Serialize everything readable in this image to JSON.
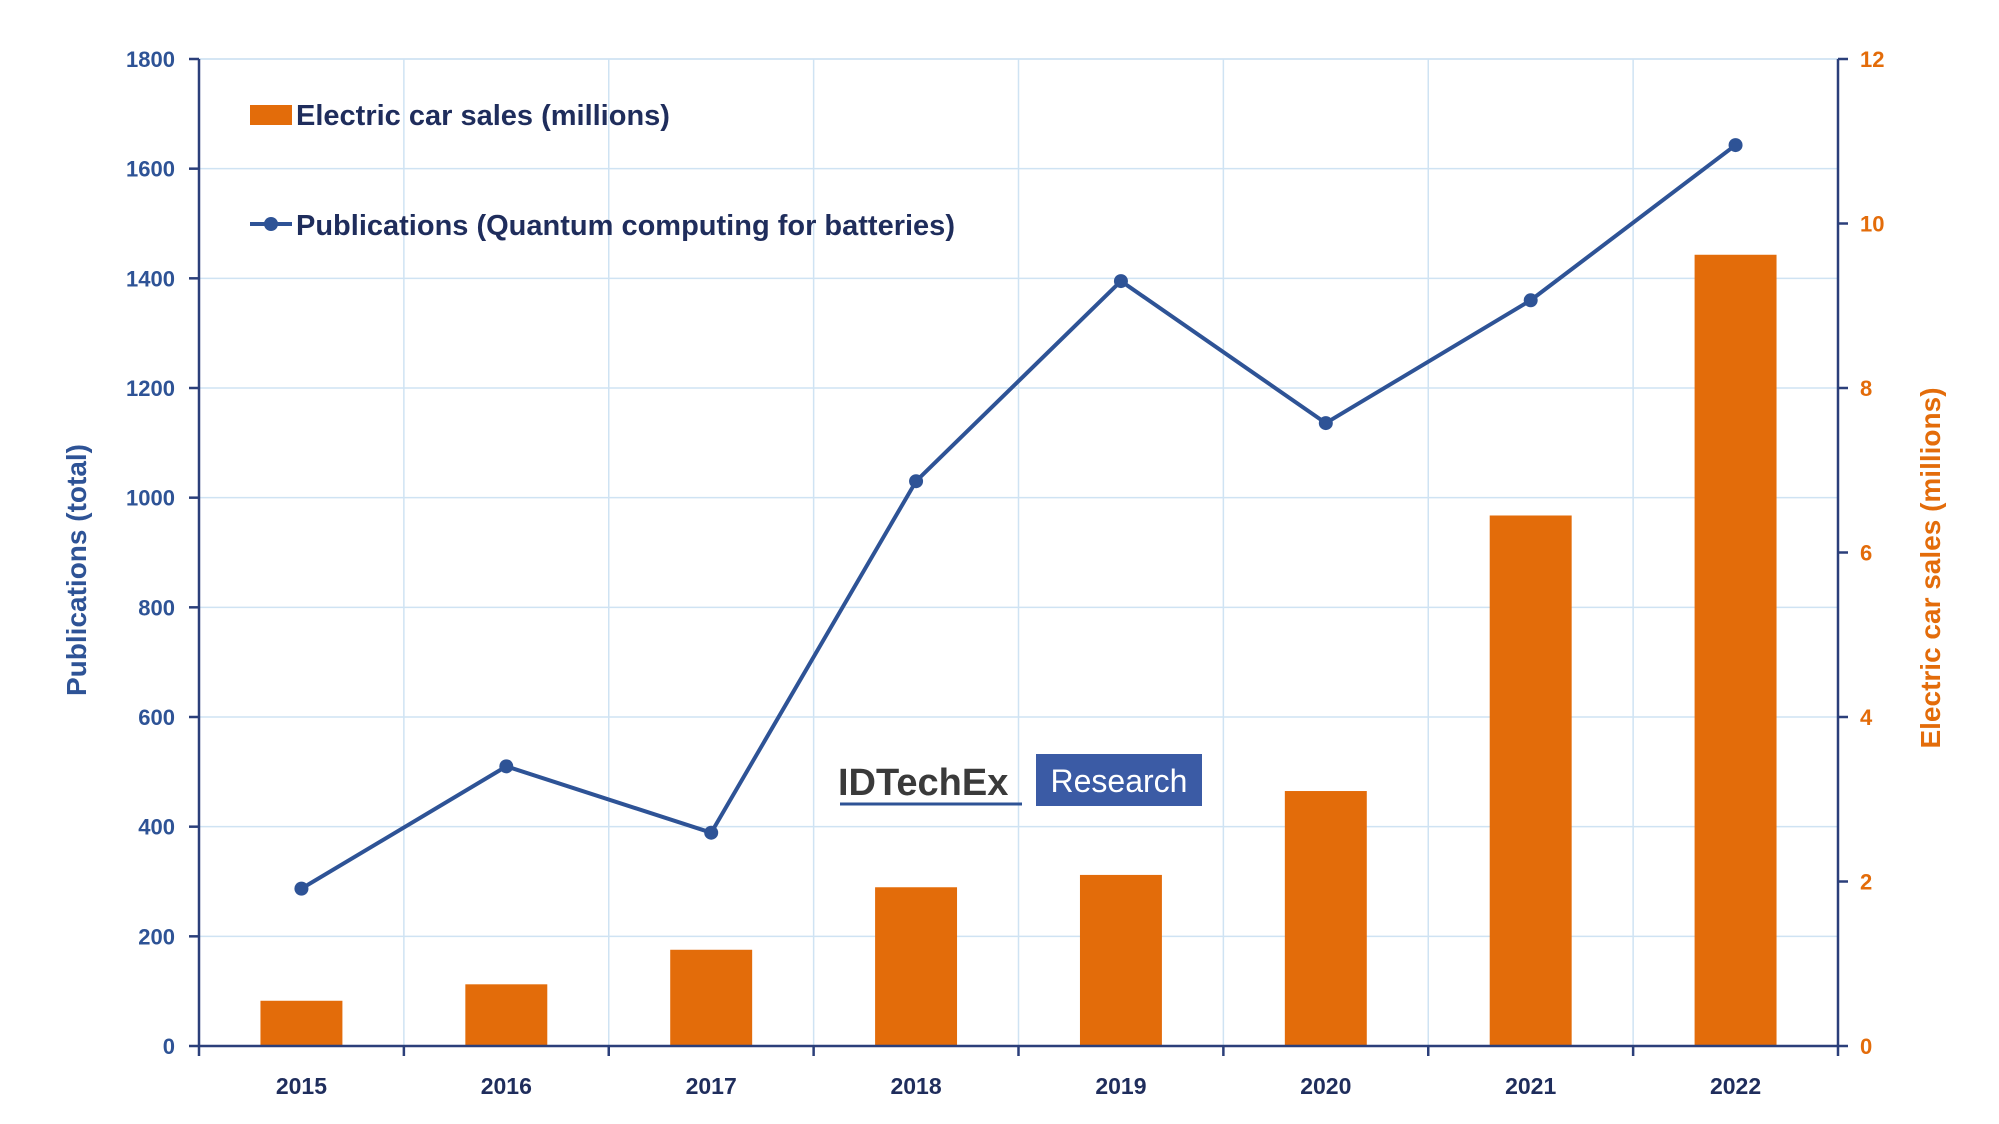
{
  "chart_data": {
    "type": "bar",
    "categories": [
      "2015",
      "2016",
      "2017",
      "2018",
      "2019",
      "2020",
      "2021",
      "2022"
    ],
    "series": [
      {
        "name": "Electric car sales (millions)",
        "type": "bar",
        "axis": "right",
        "color": "#e36c0a",
        "values": [
          0.55,
          0.75,
          1.17,
          1.93,
          2.08,
          3.1,
          6.45,
          9.62
        ]
      },
      {
        "name": "Publications (Quantum computing for batteries)",
        "type": "line",
        "axis": "left",
        "color": "#2e5396",
        "values": [
          287,
          510,
          389,
          1030,
          1395,
          1136,
          1360,
          1643
        ]
      }
    ],
    "y_left": {
      "label": "Publications (total)",
      "lim": [
        0,
        1800
      ],
      "ticks": [
        "0",
        "200",
        "400",
        "600",
        "800",
        "1000",
        "1200",
        "1400",
        "1600",
        "1800"
      ]
    },
    "y_right": {
      "label": "Electric car sales (millions)",
      "lim": [
        0,
        12
      ],
      "ticks": [
        "0",
        "2",
        "4",
        "6",
        "8",
        "10",
        "12"
      ]
    },
    "grid": true,
    "legend_position": "top-left"
  },
  "watermark": {
    "left_text": "IDTechEx",
    "right_text": "Research"
  }
}
